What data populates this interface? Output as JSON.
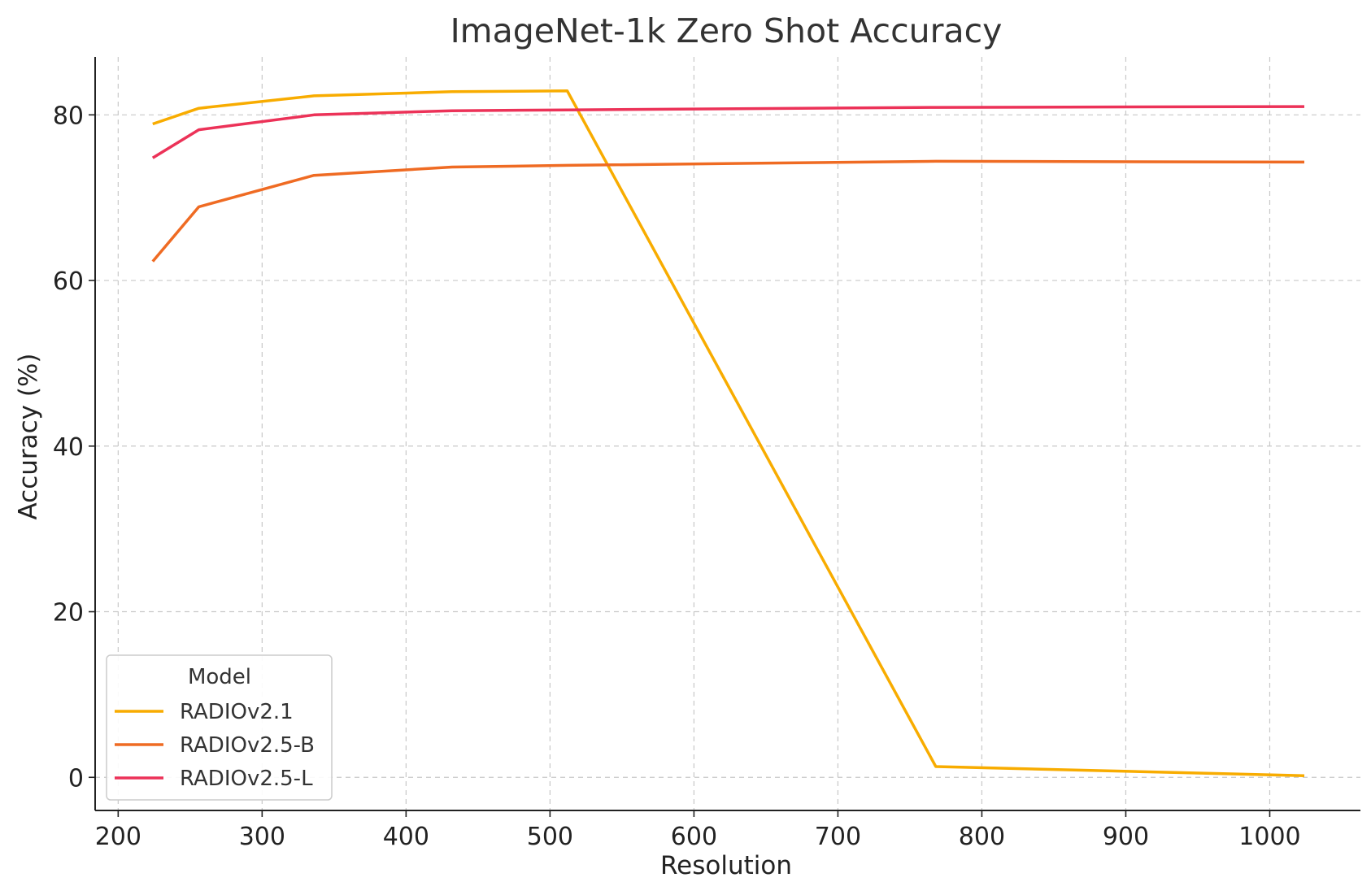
{
  "chart_data": {
    "type": "line",
    "title": "ImageNet-1k Zero Shot Accuracy",
    "xlabel": "Resolution",
    "ylabel": "Accuracy (%)",
    "xlim": [
      184,
      1063
    ],
    "ylim": [
      -4,
      87
    ],
    "xticks": [
      200,
      300,
      400,
      500,
      600,
      700,
      800,
      900,
      1000
    ],
    "yticks": [
      0,
      20,
      40,
      60,
      80
    ],
    "grid": true,
    "legend": {
      "title": "Model",
      "placement": "lower-left"
    },
    "series": [
      {
        "name": "RADIOv2.1",
        "color": "#f8ac00",
        "x": [
          224,
          256,
          336,
          432,
          512,
          768,
          1024
        ],
        "y": [
          78.9,
          80.8,
          82.3,
          82.8,
          82.9,
          1.3,
          0.2
        ]
      },
      {
        "name": "RADIOv2.5-B",
        "color": "#ef6b23",
        "x": [
          224,
          256,
          336,
          432,
          512,
          768,
          1024
        ],
        "y": [
          62.3,
          68.9,
          72.7,
          73.7,
          73.9,
          74.4,
          74.3
        ]
      },
      {
        "name": "RADIOv2.5-L",
        "color": "#ec3258",
        "x": [
          224,
          256,
          336,
          432,
          512,
          768,
          1024
        ],
        "y": [
          74.8,
          78.2,
          80.0,
          80.5,
          80.6,
          80.9,
          81.0
        ]
      }
    ]
  }
}
